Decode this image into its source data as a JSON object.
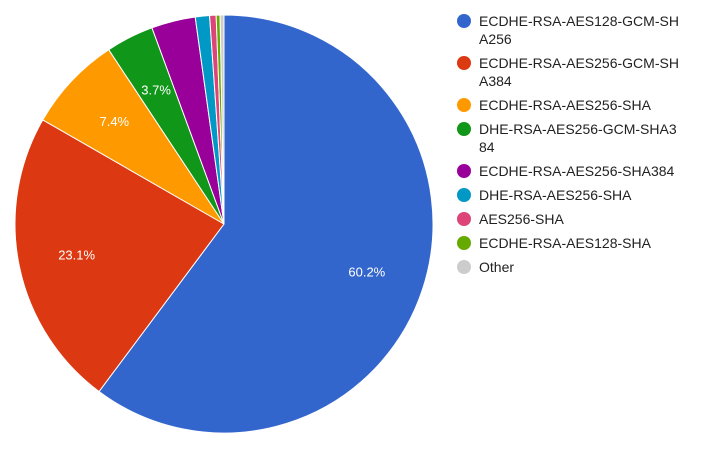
{
  "chart_data": {
    "type": "pie",
    "title": "",
    "legend_position": "right",
    "categories": [
      "ECDHE-RSA-AES128-GCM-SHA256",
      "ECDHE-RSA-AES256-GCM-SHA384",
      "ECDHE-RSA-AES256-SHA",
      "DHE-RSA-AES256-GCM-SHA384",
      "ECDHE-RSA-AES256-SHA384",
      "DHE-RSA-AES256-SHA",
      "AES256-SHA",
      "ECDHE-RSA-AES128-SHA",
      "Other"
    ],
    "values": [
      60.2,
      23.1,
      7.4,
      3.7,
      3.4,
      1.1,
      0.5,
      0.3,
      0.3
    ],
    "labels": [
      "60.2%",
      "23.1%",
      "7.4%",
      "3.7%",
      "",
      "",
      "",
      "",
      ""
    ],
    "colors": [
      "#3366cc",
      "#dc3912",
      "#ff9900",
      "#109618",
      "#990099",
      "#0099c6",
      "#dd4477",
      "#66aa00",
      "#cccccc"
    ]
  },
  "legend": {
    "items": [
      {
        "label": "ECDHE-RSA-AES128-GCM-SHA256"
      },
      {
        "label": "ECDHE-RSA-AES256-GCM-SHA384"
      },
      {
        "label": "ECDHE-RSA-AES256-SHA"
      },
      {
        "label": "DHE-RSA-AES256-GCM-SHA384"
      },
      {
        "label": "ECDHE-RSA-AES256-SHA384"
      },
      {
        "label": "DHE-RSA-AES256-SHA"
      },
      {
        "label": "AES256-SHA"
      },
      {
        "label": "ECDHE-RSA-AES128-SHA"
      },
      {
        "label": "Other"
      }
    ]
  }
}
